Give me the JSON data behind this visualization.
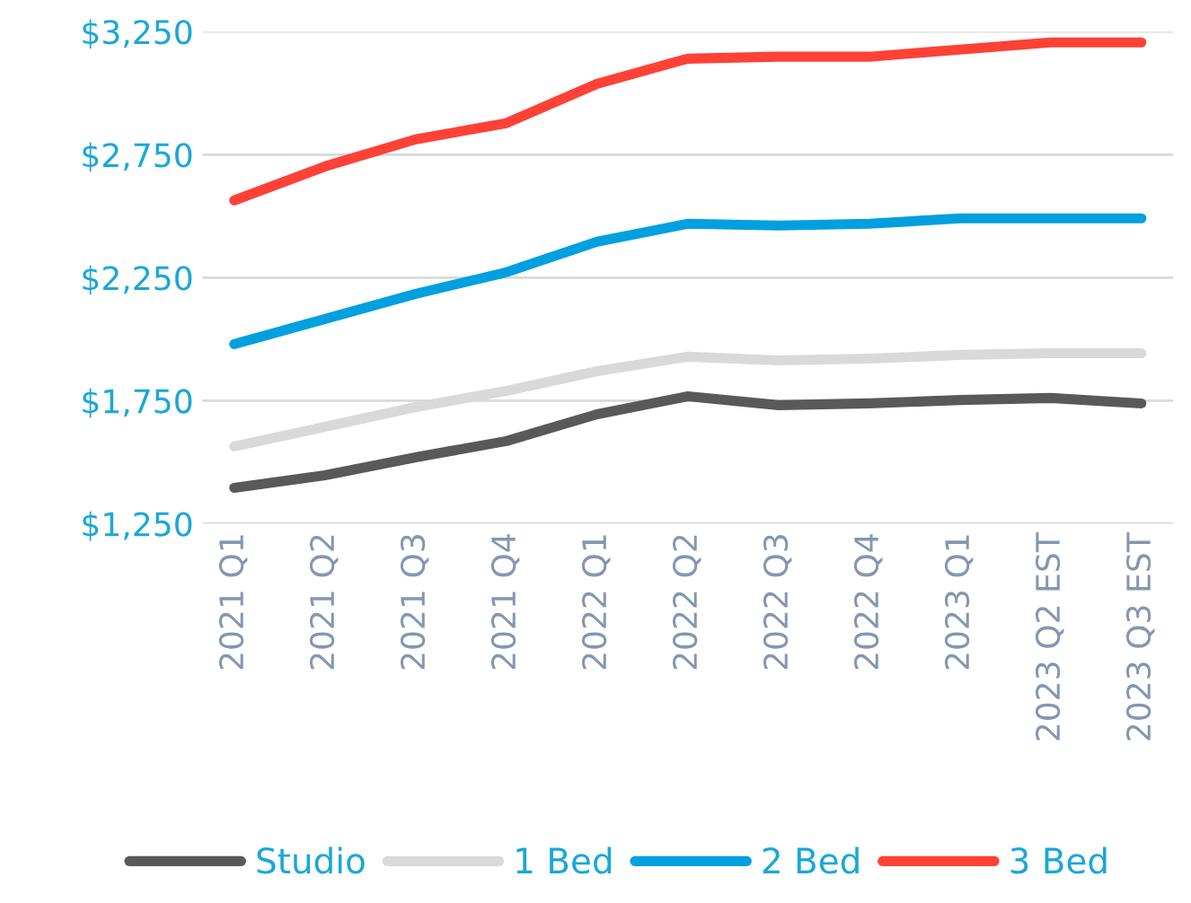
{
  "chart_data": {
    "type": "line",
    "categories": [
      "2021 Q1",
      "2021 Q2",
      "2021 Q3",
      "2021 Q4",
      "2022 Q1",
      "2022 Q2",
      "2022 Q3",
      "2022 Q4",
      "2023 Q1",
      "2023 Q2 EST",
      "2023 Q3 EST"
    ],
    "series": [
      {
        "name": "Studio",
        "color": "#595959",
        "values": [
          1396,
          1447,
          1520,
          1586,
          1695,
          1768,
          1732,
          1739,
          1753,
          1761,
          1739
        ]
      },
      {
        "name": "1 Bed",
        "color": "#d9d9d9",
        "values": [
          1564,
          1644,
          1724,
          1790,
          1870,
          1929,
          1914,
          1921,
          1936,
          1943,
          1943
        ]
      },
      {
        "name": "2 Bed",
        "color": "#00a0e0",
        "values": [
          1980,
          2082,
          2184,
          2272,
          2396,
          2469,
          2462,
          2469,
          2491,
          2491,
          2491
        ]
      },
      {
        "name": "3 Bed",
        "color": "#ff4136",
        "values": [
          2564,
          2702,
          2812,
          2878,
          3038,
          3140,
          3148,
          3148,
          3177,
          3206,
          3206
        ]
      }
    ],
    "ylim": [
      1250,
      3250
    ],
    "yticks": [
      {
        "value": 1250,
        "label": "$1,250"
      },
      {
        "value": 1750,
        "label": "$1,750"
      },
      {
        "value": 2250,
        "label": "$2,250"
      },
      {
        "value": 2750,
        "label": "$2,750"
      },
      {
        "value": 3250,
        "label": "$3,250"
      }
    ],
    "grid": "y",
    "legend": "bottom",
    "marker": "none",
    "line_style": "solid"
  }
}
